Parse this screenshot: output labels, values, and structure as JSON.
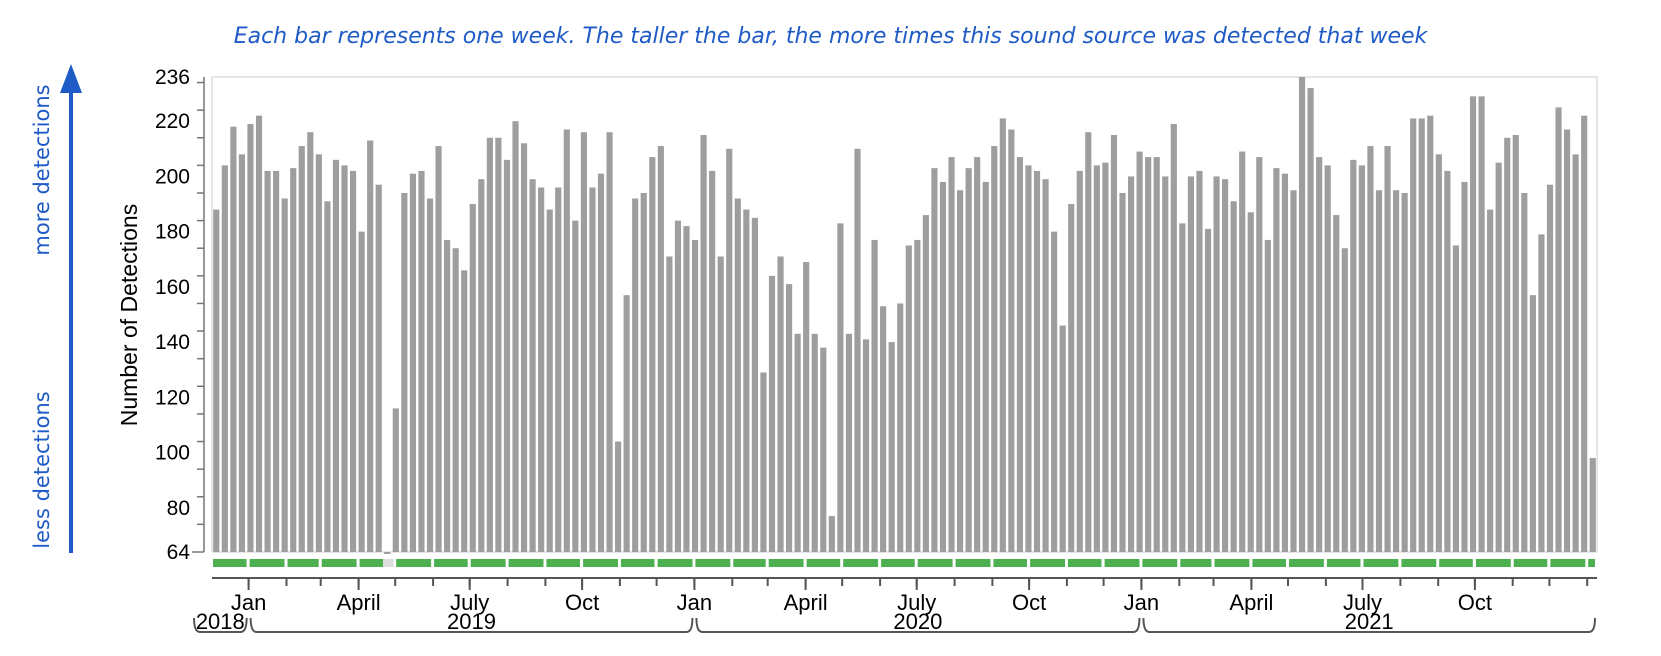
{
  "caption": "Each bar represents one week. The taller the bar, the more times this sound source was detected that week",
  "side_labels": {
    "top": "more detections",
    "bottom": "less detections"
  },
  "colors": {
    "bar": "#9e9e9e",
    "coverage": "#4caf50",
    "annotation": "#1f5bc7",
    "axis": "#555555"
  },
  "chart_data": {
    "type": "bar",
    "title": "",
    "ylabel": "Number of Detections",
    "ylim": [
      64,
      236
    ],
    "y_ticks": [
      64,
      80,
      100,
      120,
      140,
      160,
      180,
      200,
      220,
      236
    ],
    "x_start": "2018-12-02",
    "bin": "week",
    "values": [
      188,
      204,
      218,
      208,
      219,
      222,
      202,
      202,
      192,
      203,
      211,
      216,
      208,
      191,
      206,
      204,
      202,
      180,
      213,
      197,
      64,
      116,
      194,
      201,
      202,
      192,
      211,
      177,
      174,
      166,
      190,
      199,
      214,
      214,
      206,
      220,
      212,
      199,
      196,
      188,
      196,
      217,
      184,
      216,
      196,
      201,
      216,
      104,
      157,
      192,
      194,
      207,
      211,
      171,
      184,
      182,
      177,
      215,
      202,
      171,
      210,
      192,
      188,
      185,
      129,
      164,
      171,
      161,
      143,
      169,
      143,
      138,
      77,
      183,
      143,
      210,
      141,
      177,
      153,
      140,
      154,
      175,
      177,
      186,
      203,
      198,
      207,
      195,
      203,
      207,
      198,
      211,
      221,
      217,
      207,
      204,
      202,
      199,
      180,
      146,
      190,
      202,
      216,
      204,
      205,
      215,
      194,
      200,
      209,
      207,
      207,
      200,
      219,
      183,
      200,
      202,
      181,
      200,
      199,
      191,
      209,
      187,
      207,
      177,
      203,
      201,
      195,
      237,
      232,
      207,
      204,
      186,
      174,
      206,
      204,
      211,
      195,
      211,
      195,
      194,
      221,
      221,
      222,
      208,
      202,
      175,
      198,
      229,
      229,
      188,
      205,
      214,
      215,
      194,
      157,
      179,
      197,
      225,
      217,
      208,
      222,
      98
    ],
    "month_labels": [
      "Jan",
      "April",
      "July",
      "Oct",
      "Jan",
      "April",
      "July",
      "Oct",
      "Jan",
      "April",
      "July",
      "Oct"
    ],
    "year_labels": [
      "2018",
      "2019",
      "2020",
      "2021"
    ]
  }
}
